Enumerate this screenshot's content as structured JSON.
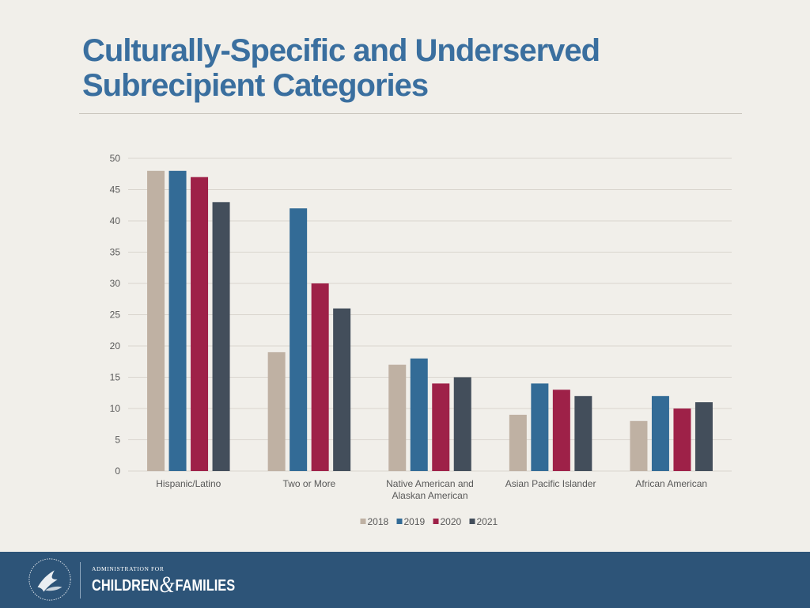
{
  "slide": {
    "title": "Culturally-Specific and Underserved Subrecipient Categories"
  },
  "footer": {
    "org_line1": "ADMINISTRATION FOR",
    "org_word1": "CHILDREN",
    "org_amp": "&",
    "org_word2": "FAMILIES",
    "seal_icon": "hhs-eagle-seal-icon",
    "background": "#2d5478"
  },
  "chart_data": {
    "type": "bar",
    "title": "",
    "xlabel": "",
    "ylabel": "",
    "categories": [
      [
        "Hispanic/Latino"
      ],
      [
        "Two or More"
      ],
      [
        "Native American and",
        "Alaskan American"
      ],
      [
        "Asian Pacific Islander"
      ],
      [
        "African American"
      ]
    ],
    "series": [
      {
        "name": "2018",
        "color": "#bfb1a3",
        "values": [
          48,
          19,
          17,
          9,
          8
        ]
      },
      {
        "name": "2019",
        "color": "#336b96",
        "values": [
          48,
          42,
          18,
          14,
          12
        ]
      },
      {
        "name": "2020",
        "color": "#9e2148",
        "values": [
          47,
          30,
          14,
          13,
          10
        ]
      },
      {
        "name": "2021",
        "color": "#434e5b",
        "values": [
          43,
          26,
          15,
          12,
          11
        ]
      }
    ],
    "ylim": [
      0,
      50
    ],
    "yticks": [
      0,
      5,
      10,
      15,
      20,
      25,
      30,
      35,
      40,
      45,
      50
    ],
    "grid": true,
    "legend": "bottom-center"
  }
}
